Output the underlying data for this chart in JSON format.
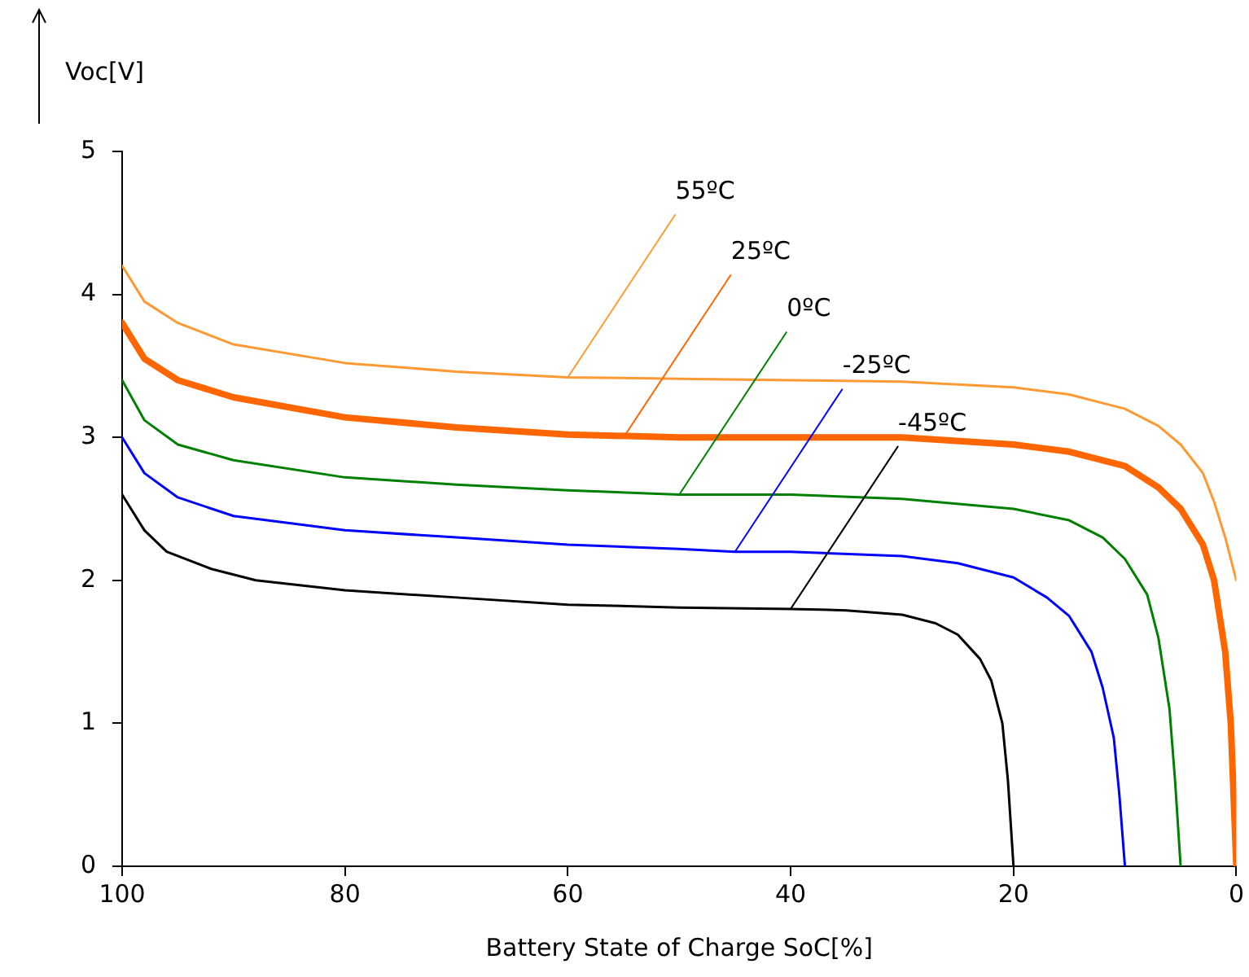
{
  "chart_data": {
    "type": "line",
    "xlabel": "Battery State of Charge SoC[%]",
    "ylabel": "Voc[V]",
    "xlim": [
      100,
      0
    ],
    "xticks": [
      100,
      80,
      60,
      40,
      20,
      0
    ],
    "ylim": [
      0,
      5
    ],
    "yticks": [
      0,
      1,
      2,
      3,
      4,
      5
    ],
    "grid": false,
    "legend": false,
    "marker": "none",
    "line_style": "solid",
    "series": [
      {
        "color": "#ff9933",
        "x": [
          100,
          98,
          95,
          90,
          80,
          70,
          60,
          50,
          40,
          30,
          20,
          15,
          10,
          7,
          5,
          3,
          2,
          1,
          0
        ],
        "values": [
          4.2,
          3.95,
          3.8,
          3.65,
          3.52,
          3.46,
          3.42,
          3.41,
          3.4,
          3.39,
          3.35,
          3.3,
          3.2,
          3.08,
          2.95,
          2.75,
          2.55,
          2.3,
          2.0
        ]
      },
      {
        "color": "#ff6600",
        "x": [
          100,
          98,
          95,
          90,
          80,
          70,
          60,
          50,
          40,
          30,
          20,
          15,
          10,
          7,
          5,
          3,
          2,
          1,
          0.5,
          0
        ],
        "values": [
          3.8,
          3.55,
          3.4,
          3.28,
          3.14,
          3.07,
          3.02,
          3.0,
          3.0,
          3.0,
          2.95,
          2.9,
          2.8,
          2.65,
          2.5,
          2.25,
          2.0,
          1.5,
          1.0,
          0
        ]
      },
      {
        "color": "#008000",
        "x": [
          100,
          98,
          95,
          90,
          80,
          70,
          60,
          50,
          40,
          30,
          20,
          15,
          12,
          10,
          8,
          7,
          6,
          5.5,
          5
        ],
        "values": [
          3.4,
          3.12,
          2.95,
          2.84,
          2.72,
          2.67,
          2.63,
          2.6,
          2.6,
          2.57,
          2.5,
          2.42,
          2.3,
          2.15,
          1.9,
          1.6,
          1.1,
          0.6,
          0
        ]
      },
      {
        "color": "#0000ff",
        "x": [
          100,
          98,
          95,
          90,
          80,
          70,
          60,
          50,
          45,
          40,
          30,
          25,
          20,
          17,
          15,
          13,
          12,
          11,
          10.5,
          10
        ],
        "values": [
          3.0,
          2.75,
          2.58,
          2.45,
          2.35,
          2.3,
          2.25,
          2.22,
          2.2,
          2.2,
          2.17,
          2.12,
          2.02,
          1.88,
          1.75,
          1.5,
          1.25,
          0.9,
          0.5,
          0
        ]
      },
      {
        "color": "#000000",
        "x": [
          100,
          98,
          96,
          92,
          88,
          80,
          70,
          60,
          50,
          40,
          35,
          30,
          27,
          25,
          23,
          22,
          21,
          20.5,
          20
        ],
        "values": [
          2.6,
          2.35,
          2.2,
          2.08,
          2.0,
          1.93,
          1.88,
          1.83,
          1.81,
          1.8,
          1.79,
          1.76,
          1.7,
          1.62,
          1.45,
          1.3,
          1.0,
          0.6,
          0
        ]
      }
    ],
    "annotations": [
      {
        "text": "55ºC",
        "x": 60,
        "y": 3.42
      },
      {
        "text": "25ºC",
        "x": 55,
        "y": 3.0
      },
      {
        "text": "0ºC",
        "x": 50,
        "y": 2.6
      },
      {
        "text": "-25ºC",
        "x": 45,
        "y": 2.2
      },
      {
        "text": "-45ºC",
        "x": 40,
        "y": 1.8
      }
    ]
  }
}
